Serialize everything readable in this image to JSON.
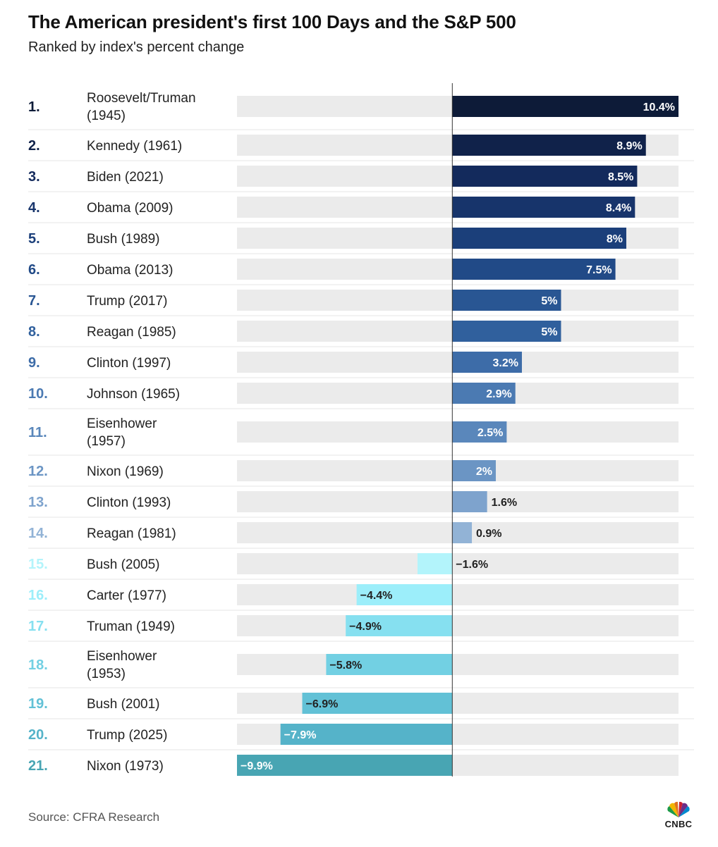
{
  "header": {
    "title": "The American president's first 100 Days and the S&P 500",
    "subtitle": "Ranked by index's percent change"
  },
  "footer": {
    "source": "Source: CFRA Research",
    "logo_text": "CNBC"
  },
  "colors": {
    "track": "#ebebeb",
    "zero_line": "#333333",
    "label_light": "#ffffff",
    "label_dark": "#222222"
  },
  "chart_data": {
    "type": "bar",
    "orientation": "horizontal",
    "title": "The American president's first 100 Days and the S&P 500",
    "subtitle": "Ranked by index's percent change",
    "xlim": [
      -9.9,
      10.4
    ],
    "grid": false,
    "unit": "%",
    "rows": [
      {
        "rank": "1.",
        "name": [
          "Roosevelt/Truman",
          "(1945)"
        ],
        "value": 10.4,
        "label": "10.4%",
        "color": "#0d1b38"
      },
      {
        "rank": "2.",
        "name": [
          "Kennedy (1961)"
        ],
        "value": 8.9,
        "label": "8.9%",
        "color": "#10224a"
      },
      {
        "rank": "3.",
        "name": [
          "Biden (2021)"
        ],
        "value": 8.5,
        "label": "8.5%",
        "color": "#132a5c"
      },
      {
        "rank": "4.",
        "name": [
          "Obama (2009)"
        ],
        "value": 8.4,
        "label": "8.4%",
        "color": "#17346b"
      },
      {
        "rank": "5.",
        "name": [
          "Bush (1989)"
        ],
        "value": 8.0,
        "label": "8%",
        "color": "#1b3f7a"
      },
      {
        "rank": "6.",
        "name": [
          "Obama (2013)"
        ],
        "value": 7.5,
        "label": "7.5%",
        "color": "#214a87"
      },
      {
        "rank": "7.",
        "name": [
          "Trump (2017)"
        ],
        "value": 5.0,
        "label": "5%",
        "color": "#295693"
      },
      {
        "rank": "8.",
        "name": [
          "Reagan (1985)"
        ],
        "value": 5.0,
        "label": "5%",
        "color": "#30609d"
      },
      {
        "rank": "9.",
        "name": [
          "Clinton (1997)"
        ],
        "value": 3.2,
        "label": "3.2%",
        "color": "#3d6ca8"
      },
      {
        "rank": "10.",
        "name": [
          "Johnson (1965)"
        ],
        "value": 2.9,
        "label": "2.9%",
        "color": "#4b7ab2"
      },
      {
        "rank": "11.",
        "name": [
          "Eisenhower",
          "(1957)"
        ],
        "value": 2.5,
        "label": "2.5%",
        "color": "#5a87bb"
      },
      {
        "rank": "12.",
        "name": [
          "Nixon (1969)"
        ],
        "value": 2.0,
        "label": "2%",
        "color": "#6b95c4"
      },
      {
        "rank": "13.",
        "name": [
          "Clinton (1993)"
        ],
        "value": 1.6,
        "label": "1.6%",
        "color": "#7ea3cd"
      },
      {
        "rank": "14.",
        "name": [
          "Reagan (1981)"
        ],
        "value": 0.9,
        "label": "0.9%",
        "color": "#92b3d6"
      },
      {
        "rank": "15.",
        "name": [
          "Bush (2005)"
        ],
        "value": -1.6,
        "label": "−1.6%",
        "color": "#b3f4fb"
      },
      {
        "rank": "16.",
        "name": [
          "Carter (1977)"
        ],
        "value": -4.4,
        "label": "−4.4%",
        "color": "#9ceefa"
      },
      {
        "rank": "17.",
        "name": [
          "Truman (1949)"
        ],
        "value": -4.9,
        "label": "−4.9%",
        "color": "#86e0f0"
      },
      {
        "rank": "18.",
        "name": [
          "Eisenhower",
          "(1953)"
        ],
        "value": -5.8,
        "label": "−5.8%",
        "color": "#72d0e3"
      },
      {
        "rank": "19.",
        "name": [
          "Bush (2001)"
        ],
        "value": -6.9,
        "label": "−6.9%",
        "color": "#62c1d6"
      },
      {
        "rank": "20.",
        "name": [
          "Trump (2025)"
        ],
        "value": -7.9,
        "label": "−7.9%",
        "color": "#55b3c9"
      },
      {
        "rank": "21.",
        "name": [
          "Nixon (1973)"
        ],
        "value": -9.9,
        "label": "−9.9%",
        "color": "#48a5b3"
      }
    ]
  }
}
